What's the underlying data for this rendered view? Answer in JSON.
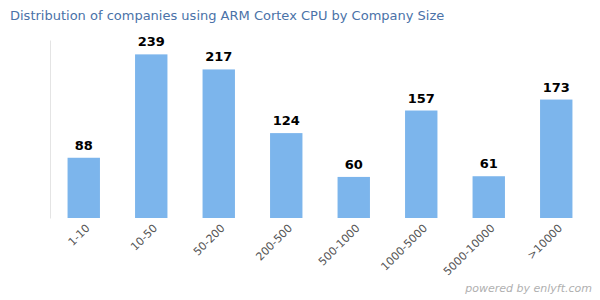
{
  "chart_data": {
    "type": "bar",
    "title": "Distribution of companies using ARM Cortex CPU by Company Size",
    "categories": [
      "1-10",
      "10-50",
      "50-200",
      "200-500",
      "500-1000",
      "1000-5000",
      "5000-10000",
      ">10000"
    ],
    "values": [
      88,
      239,
      217,
      124,
      60,
      157,
      61,
      173
    ],
    "color": "#7cb5ec",
    "ylim": [
      0,
      260
    ],
    "grid": false,
    "data_labels": true,
    "tick_labels": "x",
    "annotations": [
      "powered by enlyft.com"
    ]
  }
}
